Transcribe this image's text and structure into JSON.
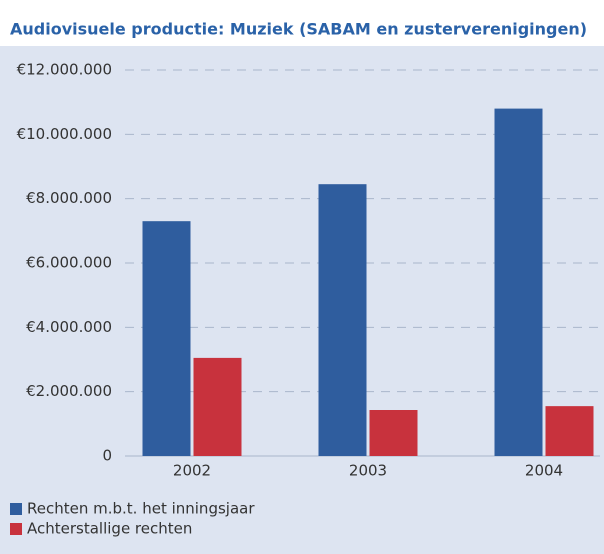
{
  "chart_data": {
    "type": "bar",
    "title": "Audiovisuele productie: Muziek (SABAM en zusterverenigingen)",
    "categories": [
      "2002",
      "2003",
      "2004"
    ],
    "series": [
      {
        "name": "Rechten m.b.t. het inningsjaar",
        "color": "#2f5d9e",
        "values": [
          7300000,
          8450000,
          10800000
        ]
      },
      {
        "name": "Achterstallige rechten",
        "color": "#c8323d",
        "values": [
          3050000,
          1430000,
          1550000
        ]
      }
    ],
    "ylim": [
      0,
      12000000
    ],
    "yticks": [
      0,
      {
        "value": 2000000,
        "label": "€2.000.000"
      },
      {
        "value": 4000000,
        "label": "€4.000.000"
      },
      {
        "value": 6000000,
        "label": "€6.000.000"
      },
      {
        "value": 8000000,
        "label": "€8.000.000"
      },
      {
        "value": 10000000,
        "label": "€10.000.000"
      },
      {
        "value": 12000000,
        "label": "€12.000.000"
      }
    ],
    "grid": true
  }
}
